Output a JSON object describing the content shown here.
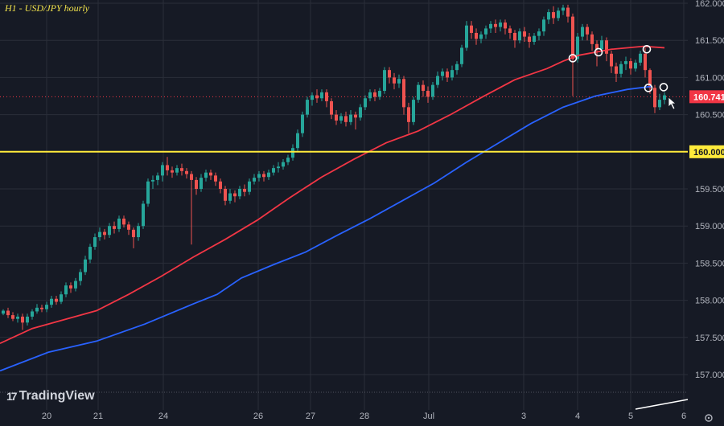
{
  "chart_data": {
    "type": "candlestick",
    "title": "H1 - USD/JPY hourly",
    "brand": "TradingView",
    "ylim": [
      156.8,
      162.05
    ],
    "y_ticks": [
      "162.000",
      "161.500",
      "161.000",
      "160.500",
      "160.000",
      "159.500",
      "159.000",
      "158.500",
      "158.000",
      "157.500",
      "157.000"
    ],
    "x_ticks": [
      "20",
      "21",
      "24",
      "26",
      "27",
      "28",
      "Jul",
      "3",
      "4",
      "5",
      "6"
    ],
    "current_price": {
      "value": 160.741,
      "label": "160.741",
      "color": "#f23645"
    },
    "support_level": {
      "value": 160.0,
      "label": "160.000",
      "color": "#ffeb3b"
    },
    "colors": {
      "up": "#26a69a",
      "down": "#ef5350",
      "ma_fast": "#f23645",
      "ma_slow": "#2962ff",
      "grid": "#2a2e39",
      "text": "#b2b5be"
    },
    "series": [
      {
        "name": "",
        "color": "#f23645",
        "points": [
          [
            0,
            157.42
          ],
          [
            40,
            157.62
          ],
          [
            80,
            157.74
          ],
          [
            120,
            157.86
          ],
          [
            160,
            158.08
          ],
          [
            200,
            158.32
          ],
          [
            240,
            158.58
          ],
          [
            280,
            158.82
          ],
          [
            320,
            159.08
          ],
          [
            360,
            159.38
          ],
          [
            400,
            159.66
          ],
          [
            440,
            159.9
          ],
          [
            480,
            160.12
          ],
          [
            520,
            160.28
          ],
          [
            560,
            160.5
          ],
          [
            600,
            160.74
          ],
          [
            640,
            160.97
          ],
          [
            680,
            161.12
          ],
          [
            700,
            161.22
          ],
          [
            720,
            161.3
          ],
          [
            760,
            161.38
          ],
          [
            800,
            161.42
          ],
          [
            826,
            161.4
          ]
        ]
      },
      {
        "name": "",
        "color": "#2962ff",
        "points": [
          [
            0,
            157.05
          ],
          [
            60,
            157.3
          ],
          [
            120,
            157.45
          ],
          [
            180,
            157.68
          ],
          [
            240,
            157.95
          ],
          [
            270,
            158.08
          ],
          [
            300,
            158.3
          ],
          [
            340,
            158.48
          ],
          [
            380,
            158.65
          ],
          [
            420,
            158.88
          ],
          [
            460,
            159.1
          ],
          [
            500,
            159.34
          ],
          [
            540,
            159.58
          ],
          [
            580,
            159.86
          ],
          [
            620,
            160.12
          ],
          [
            660,
            160.38
          ],
          [
            700,
            160.6
          ],
          [
            740,
            160.75
          ],
          [
            780,
            160.84
          ],
          [
            810,
            160.88
          ]
        ]
      }
    ],
    "candles": [
      [
        4,
        157.82,
        157.86,
        157.8,
        157.88
      ],
      [
        10,
        157.86,
        157.8,
        157.76,
        157.9
      ],
      [
        16,
        157.8,
        157.75,
        157.72,
        157.84
      ],
      [
        22,
        157.75,
        157.78,
        157.7,
        157.82
      ],
      [
        28,
        157.78,
        157.7,
        157.6,
        157.82
      ],
      [
        34,
        157.7,
        157.78,
        157.66,
        157.82
      ],
      [
        40,
        157.78,
        157.85,
        157.74,
        157.88
      ],
      [
        46,
        157.85,
        157.9,
        157.82,
        157.95
      ],
      [
        52,
        157.9,
        157.88,
        157.84,
        157.94
      ],
      [
        58,
        157.88,
        157.94,
        157.84,
        157.98
      ],
      [
        64,
        157.94,
        158.02,
        157.9,
        158.06
      ],
      [
        70,
        158.02,
        157.98,
        157.94,
        158.06
      ],
      [
        76,
        157.98,
        158.08,
        157.95,
        158.12
      ],
      [
        82,
        158.08,
        158.2,
        158.04,
        158.24
      ],
      [
        88,
        158.2,
        158.16,
        158.1,
        158.24
      ],
      [
        94,
        158.16,
        158.26,
        158.12,
        158.3
      ],
      [
        100,
        158.26,
        158.38,
        158.2,
        158.42
      ],
      [
        106,
        158.38,
        158.55,
        158.34,
        158.6
      ],
      [
        112,
        158.55,
        158.72,
        158.5,
        158.76
      ],
      [
        118,
        158.72,
        158.85,
        158.68,
        158.9
      ],
      [
        124,
        158.85,
        158.92,
        158.8,
        158.98
      ],
      [
        130,
        158.92,
        158.88,
        158.82,
        158.96
      ],
      [
        136,
        158.88,
        159.0,
        158.84,
        159.04
      ],
      [
        142,
        159.0,
        158.96,
        158.9,
        159.06
      ],
      [
        148,
        158.96,
        159.1,
        158.92,
        159.14
      ],
      [
        154,
        159.1,
        159.02,
        158.98,
        159.14
      ],
      [
        160,
        159.02,
        158.95,
        158.88,
        159.06
      ],
      [
        166,
        158.95,
        158.85,
        158.7,
        158.98
      ],
      [
        172,
        158.85,
        159.0,
        158.8,
        159.04
      ],
      [
        178,
        159.0,
        159.3,
        158.96,
        159.34
      ],
      [
        184,
        159.3,
        159.6,
        159.26,
        159.64
      ],
      [
        190,
        159.6,
        159.62,
        159.5,
        159.68
      ],
      [
        196,
        159.62,
        159.68,
        159.55,
        159.72
      ],
      [
        202,
        159.68,
        159.82,
        159.6,
        159.86
      ],
      [
        208,
        159.82,
        159.75,
        159.68,
        159.93
      ],
      [
        214,
        159.75,
        159.72,
        159.65,
        159.8
      ],
      [
        220,
        159.72,
        159.78,
        159.68,
        159.82
      ],
      [
        226,
        159.78,
        159.74,
        159.68,
        159.84
      ],
      [
        232,
        159.74,
        159.7,
        159.64,
        159.78
      ],
      [
        238,
        159.7,
        159.62,
        158.75,
        159.74
      ],
      [
        244,
        159.62,
        159.5,
        159.42,
        159.66
      ],
      [
        250,
        159.5,
        159.65,
        159.46,
        159.7
      ],
      [
        256,
        159.65,
        159.72,
        159.6,
        159.76
      ],
      [
        262,
        159.72,
        159.68,
        159.62,
        159.76
      ],
      [
        268,
        159.68,
        159.6,
        159.54,
        159.72
      ],
      [
        274,
        159.6,
        159.5,
        159.44,
        159.64
      ],
      [
        280,
        159.5,
        159.34,
        159.28,
        159.54
      ],
      [
        286,
        159.34,
        159.44,
        159.3,
        159.5
      ],
      [
        292,
        159.44,
        159.4,
        159.32,
        159.48
      ],
      [
        298,
        159.4,
        159.5,
        159.36,
        159.54
      ],
      [
        304,
        159.5,
        159.46,
        159.4,
        159.56
      ],
      [
        310,
        159.46,
        159.6,
        159.42,
        159.64
      ],
      [
        316,
        159.6,
        159.65,
        159.56,
        159.7
      ],
      [
        322,
        159.65,
        159.7,
        159.6,
        159.74
      ],
      [
        328,
        159.7,
        159.66,
        159.6,
        159.74
      ],
      [
        334,
        159.66,
        159.72,
        159.62,
        159.76
      ],
      [
        340,
        159.72,
        159.78,
        159.68,
        159.82
      ],
      [
        346,
        159.78,
        159.8,
        159.72,
        159.86
      ],
      [
        352,
        159.8,
        159.86,
        159.76,
        159.9
      ],
      [
        358,
        159.86,
        159.92,
        159.82,
        159.96
      ],
      [
        364,
        159.92,
        160.05,
        159.88,
        160.1
      ],
      [
        370,
        160.05,
        160.25,
        160.0,
        160.3
      ],
      [
        376,
        160.25,
        160.5,
        160.2,
        160.54
      ],
      [
        382,
        160.5,
        160.7,
        160.46,
        160.74
      ],
      [
        388,
        160.7,
        160.76,
        160.62,
        160.8
      ],
      [
        394,
        160.76,
        160.72,
        160.66,
        160.84
      ],
      [
        400,
        160.72,
        160.8,
        160.68,
        160.84
      ],
      [
        406,
        160.8,
        160.68,
        160.6,
        160.84
      ],
      [
        412,
        160.68,
        160.5,
        160.44,
        160.72
      ],
      [
        418,
        160.5,
        160.42,
        160.36,
        160.56
      ],
      [
        424,
        160.42,
        160.48,
        160.38,
        160.52
      ],
      [
        430,
        160.48,
        160.4,
        160.34,
        160.54
      ],
      [
        436,
        160.4,
        160.5,
        160.36,
        160.56
      ],
      [
        442,
        160.5,
        160.46,
        160.3,
        160.54
      ],
      [
        448,
        160.46,
        160.6,
        160.42,
        160.64
      ],
      [
        454,
        160.6,
        160.72,
        160.56,
        160.76
      ],
      [
        460,
        160.72,
        160.8,
        160.68,
        160.84
      ],
      [
        466,
        160.8,
        160.74,
        160.68,
        160.84
      ],
      [
        472,
        160.74,
        160.82,
        160.7,
        160.86
      ],
      [
        478,
        160.82,
        161.1,
        160.78,
        161.14
      ],
      [
        484,
        161.1,
        161.0,
        160.92,
        161.14
      ],
      [
        490,
        161.0,
        160.92,
        160.84,
        161.06
      ],
      [
        496,
        160.92,
        160.98,
        160.86,
        161.04
      ],
      [
        502,
        160.98,
        160.6,
        160.5,
        161.02
      ],
      [
        508,
        160.6,
        160.4,
        160.25,
        160.66
      ],
      [
        514,
        160.4,
        160.7,
        160.36,
        160.74
      ],
      [
        520,
        160.7,
        160.9,
        160.66,
        160.94
      ],
      [
        526,
        160.9,
        160.82,
        160.74,
        160.96
      ],
      [
        532,
        160.82,
        160.74,
        160.66,
        160.88
      ],
      [
        538,
        160.74,
        160.9,
        160.7,
        160.94
      ],
      [
        544,
        160.9,
        161.02,
        160.86,
        161.08
      ],
      [
        550,
        161.02,
        161.08,
        160.96,
        161.12
      ],
      [
        556,
        161.08,
        161.0,
        160.94,
        161.12
      ],
      [
        562,
        161.0,
        161.1,
        160.96,
        161.16
      ],
      [
        568,
        161.1,
        161.18,
        161.04,
        161.22
      ],
      [
        574,
        161.18,
        161.4,
        161.14,
        161.44
      ],
      [
        580,
        161.4,
        161.7,
        161.36,
        161.76
      ],
      [
        586,
        161.7,
        161.6,
        161.52,
        161.76
      ],
      [
        592,
        161.6,
        161.52,
        161.44,
        161.66
      ],
      [
        598,
        161.52,
        161.58,
        161.46,
        161.62
      ],
      [
        604,
        161.58,
        161.66,
        161.52,
        161.7
      ],
      [
        610,
        161.66,
        161.72,
        161.6,
        161.76
      ],
      [
        616,
        161.72,
        161.68,
        161.6,
        161.78
      ],
      [
        622,
        161.68,
        161.74,
        161.62,
        161.78
      ],
      [
        628,
        161.74,
        161.66,
        161.58,
        161.78
      ],
      [
        634,
        161.66,
        161.6,
        161.52,
        161.7
      ],
      [
        640,
        161.6,
        161.5,
        161.4,
        161.64
      ],
      [
        646,
        161.5,
        161.62,
        161.46,
        161.66
      ],
      [
        652,
        161.62,
        161.55,
        161.48,
        161.68
      ],
      [
        658,
        161.55,
        161.48,
        161.4,
        161.6
      ],
      [
        664,
        161.48,
        161.56,
        161.44,
        161.6
      ],
      [
        670,
        161.56,
        161.62,
        161.5,
        161.66
      ],
      [
        676,
        161.62,
        161.78,
        161.56,
        161.82
      ],
      [
        682,
        161.78,
        161.88,
        161.72,
        161.92
      ],
      [
        688,
        161.88,
        161.8,
        161.72,
        161.96
      ],
      [
        694,
        161.8,
        161.9,
        161.76,
        161.94
      ],
      [
        700,
        161.9,
        161.94,
        161.84,
        161.98
      ],
      [
        706,
        161.94,
        161.82,
        161.74,
        161.98
      ],
      [
        712,
        161.82,
        161.25,
        160.75,
        161.86
      ],
      [
        718,
        161.25,
        161.55,
        161.2,
        161.6
      ],
      [
        724,
        161.55,
        161.68,
        161.5,
        161.72
      ],
      [
        730,
        161.68,
        161.58,
        161.5,
        161.72
      ],
      [
        736,
        161.58,
        161.45,
        161.36,
        161.62
      ],
      [
        742,
        161.45,
        161.38,
        161.15,
        161.5
      ],
      [
        748,
        161.38,
        161.5,
        161.32,
        161.56
      ],
      [
        754,
        161.5,
        161.32,
        161.22,
        161.54
      ],
      [
        760,
        161.32,
        161.15,
        161.06,
        161.36
      ],
      [
        766,
        161.15,
        161.05,
        160.94,
        161.2
      ],
      [
        772,
        161.05,
        161.18,
        161.0,
        161.22
      ],
      [
        778,
        161.18,
        161.22,
        161.1,
        161.28
      ],
      [
        784,
        161.22,
        161.12,
        161.04,
        161.26
      ],
      [
        790,
        161.12,
        161.2,
        161.08,
        161.24
      ],
      [
        796,
        161.2,
        161.32,
        161.16,
        161.36
      ],
      [
        802,
        161.32,
        161.1,
        161.0,
        161.4
      ],
      [
        808,
        161.1,
        160.86,
        160.78,
        161.12
      ],
      [
        814,
        160.86,
        160.6,
        160.52,
        160.9
      ],
      [
        820,
        160.6,
        160.7,
        160.56,
        160.78
      ],
      [
        826,
        160.7,
        160.76,
        160.64,
        160.8
      ]
    ],
    "markers": [
      [
        712,
        161.26
      ],
      [
        744,
        161.34
      ],
      [
        804,
        161.38
      ],
      [
        806,
        160.86
      ],
      [
        825,
        160.87
      ]
    ]
  }
}
